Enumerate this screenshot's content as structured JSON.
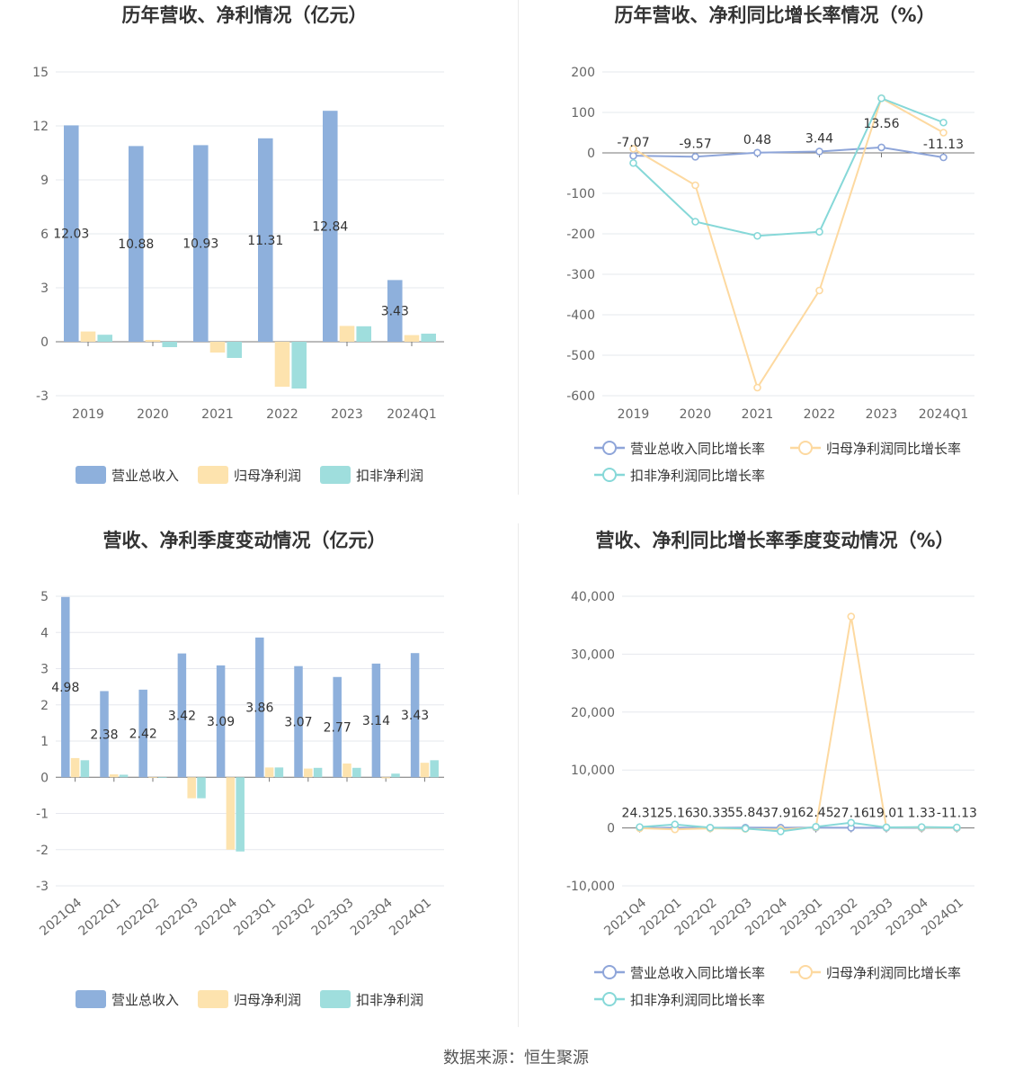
{
  "source": "数据来源：恒生聚源",
  "colors": {
    "revenue": "#8eb0dc",
    "net_profit": "#fde3ae",
    "deducted_profit": "#9fdedd",
    "revenue_line": "#8ea5d9",
    "net_line": "#fdd9a0",
    "deducted_line": "#86d8d8"
  },
  "chart_data": [
    {
      "id": "annual-bar",
      "type": "bar",
      "title": "历年营收、净利情况（亿元）",
      "categories": [
        "2019",
        "2020",
        "2021",
        "2022",
        "2023",
        "2024Q1"
      ],
      "ylim": [
        -3,
        15
      ],
      "yticks": [
        -3,
        0,
        3,
        6,
        9,
        12,
        15
      ],
      "series": [
        {
          "name": "营业总收入",
          "values": [
            12.03,
            10.88,
            10.93,
            11.31,
            12.84,
            3.43
          ],
          "labels": [
            "12.03",
            "10.88",
            "10.93",
            "11.31",
            "12.84",
            "3.43"
          ]
        },
        {
          "name": "归母净利润",
          "values": [
            0.57,
            0.1,
            -0.6,
            -2.5,
            0.88,
            0.37
          ]
        },
        {
          "name": "扣非净利润",
          "values": [
            0.39,
            -0.3,
            -0.9,
            -2.6,
            0.86,
            0.45
          ]
        }
      ],
      "legend": "bottom",
      "grid": true
    },
    {
      "id": "annual-growth",
      "type": "line",
      "title": "历年营收、净利同比增长率情况（%）",
      "categories": [
        "2019",
        "2020",
        "2021",
        "2022",
        "2023",
        "2024Q1"
      ],
      "ylim": [
        -600,
        200
      ],
      "yticks": [
        -600,
        -500,
        -400,
        -300,
        -200,
        -100,
        0,
        100,
        200
      ],
      "series": [
        {
          "name": "营业总收入同比增长率",
          "values": [
            -7.07,
            -9.57,
            0.48,
            3.44,
            13.56,
            -11.13
          ],
          "labels": [
            "-7.07",
            "-9.57",
            "0.48",
            "3.44",
            "13.56",
            "-11.13"
          ]
        },
        {
          "name": "归母净利润同比增长率",
          "values": [
            10,
            -80,
            -580,
            -340,
            135,
            50
          ]
        },
        {
          "name": "扣非净利润同比增长率",
          "values": [
            -25,
            -170,
            -205,
            -195,
            135,
            75
          ]
        }
      ],
      "legend": "bottom",
      "grid": true
    },
    {
      "id": "quarterly-bar",
      "type": "bar",
      "title": "营收、净利季度变动情况（亿元）",
      "categories": [
        "2021Q4",
        "2022Q1",
        "2022Q2",
        "2022Q3",
        "2022Q4",
        "2023Q1",
        "2023Q2",
        "2023Q3",
        "2023Q4",
        "2024Q1"
      ],
      "ylim": [
        -3,
        5
      ],
      "yticks": [
        -3,
        -2,
        -1,
        0,
        1,
        2,
        3,
        4,
        5
      ],
      "series": [
        {
          "name": "营业总收入",
          "values": [
            4.98,
            2.38,
            2.42,
            3.42,
            3.09,
            3.86,
            3.07,
            2.77,
            3.14,
            3.43
          ],
          "labels": [
            "4.98",
            "2.38",
            "2.42",
            "3.42",
            "3.09",
            "3.86",
            "3.07",
            "2.77",
            "3.14",
            "3.43"
          ]
        },
        {
          "name": "归母净利润",
          "values": [
            0.53,
            0.08,
            -0.02,
            -0.58,
            -2.0,
            0.27,
            0.24,
            0.38,
            -0.03,
            0.4
          ]
        },
        {
          "name": "扣非净利润",
          "values": [
            0.47,
            0.07,
            -0.02,
            -0.58,
            -2.05,
            0.27,
            0.26,
            0.26,
            0.1,
            0.47
          ]
        }
      ],
      "legend": "bottom",
      "grid": true
    },
    {
      "id": "quarterly-growth",
      "type": "line",
      "title": "营收、净利同比增长率季度变动情况（%）",
      "categories": [
        "2021Q4",
        "2022Q1",
        "2022Q2",
        "2022Q3",
        "2022Q4",
        "2023Q1",
        "2023Q2",
        "2023Q3",
        "2023Q4",
        "2024Q1"
      ],
      "ylim": [
        -10000,
        40000
      ],
      "yticks": [
        -10000,
        0,
        10000,
        20000,
        30000,
        40000
      ],
      "ytick_labels": [
        "-10,000",
        "0",
        "10,000",
        "20,000",
        "30,000",
        "40,000"
      ],
      "series": [
        {
          "name": "营业总收入同比增长率",
          "values": [
            24.31,
            25.16,
            30.33,
            55.84,
            37.91,
            62.45,
            27.16,
            19.01,
            1.33,
            -11.13
          ],
          "labels": [
            "24.31",
            "25.16",
            "30.33",
            "55.84",
            "37.91",
            "62.45",
            "27.16",
            "19.01",
            "1.33",
            "-11.13"
          ]
        },
        {
          "name": "归母净利润同比增长率",
          "values": [
            -50,
            -250,
            -80,
            -150,
            -300,
            120,
            36500,
            80,
            60,
            30
          ]
        },
        {
          "name": "扣非净利润同比增长率",
          "values": [
            150,
            600,
            50,
            -100,
            -600,
            200,
            900,
            100,
            150,
            80
          ]
        }
      ],
      "legend": "bottom",
      "grid": true
    }
  ]
}
